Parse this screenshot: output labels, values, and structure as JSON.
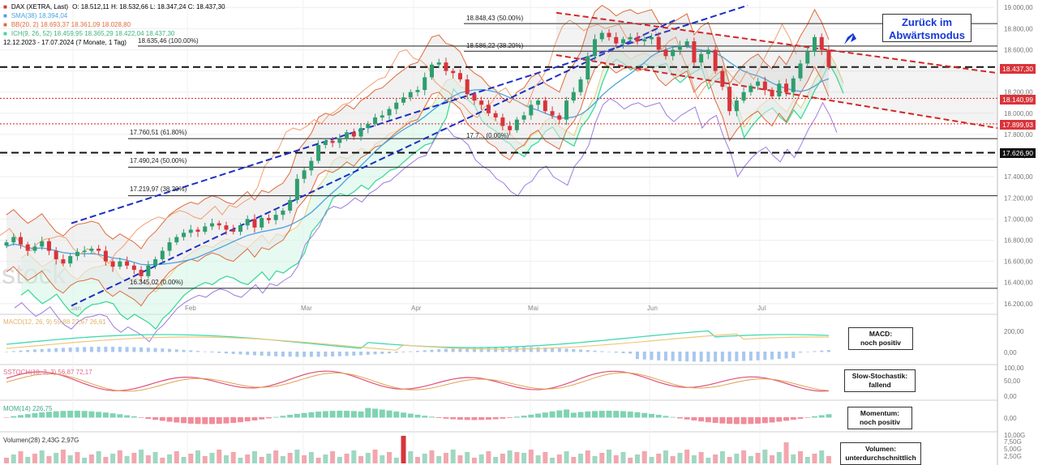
{
  "header": {
    "symbol": "DAX (XETRA, Last)",
    "ohlc": "O: 18.512,11  H: 18.532,66  L: 18.347,24  C: 18.437,30",
    "sma": "SMA(38)  18.394,04",
    "bb": "BB(20, 2)  18.693,37  18.361,09  18.028,80",
    "ichimoku": "ICH(9, 26, 52)  18.459,95  18.365,29  18.422,04  18.437,30",
    "range": "12.12.2023 - 17.07.2024  (7 Monate, 1 Tag)"
  },
  "callout": {
    "line1": "Zurück im",
    "line2": "Abwärtsmodus"
  },
  "levels": {
    "l1": "18.848,43 (50.00%)",
    "l2": "18.586,22 (38.20%)",
    "l3": "18.635,46 (100.00%)",
    "l4": "17.760,51 (61.80%)",
    "l5": "17.490,24 (50.00%)",
    "l6": "17.219,97 (38.20%)",
    "l7": "16.345,02 (0.00%)",
    "l8": "17.7... (0.00%)"
  },
  "price_labels": {
    "current": "18.437,30",
    "red1": "18.140,99",
    "red2": "17.899,93",
    "black": "17.626,90"
  },
  "indicators": {
    "macd_legend": "MACD(12, 26, 9)  59,88  22,67  26,61",
    "stoch_legend": "SSTOCH(10, 3, 3)  56,87  72,17",
    "mom_legend": "MOM(14)  226,75",
    "vol_legend": "Volumen(28)  2,43G  2,97G",
    "macd_note": [
      "MACD:",
      "noch positiv"
    ],
    "stoch_note": [
      "Slow-Stochastik:",
      "fallend"
    ],
    "mom_note": [
      "Momentum:",
      "noch positiv"
    ],
    "vol_note": [
      "Volumen:",
      "unterdurchschnittlich"
    ]
  },
  "watermark": "stock",
  "colors": {
    "up": "#2e9e6e",
    "down": "#d8343a",
    "sma": "#4aa3df",
    "bb": "#e06a3a",
    "channel": "#1b2fc4",
    "red_channel": "#d81e1e",
    "cloud_up": "#3fd99a",
    "cloud_down": "#9d7be0",
    "accent_blue": "#1638d8"
  },
  "chart_data": {
    "type": "candlestick",
    "title": "DAX (XETRA, Last)",
    "period": "12.12.2023 - 17.07.2024",
    "x_ticks": [
      "Jan",
      "Feb",
      "Mar",
      "Apr",
      "Mai",
      "Jun",
      "Jul"
    ],
    "y_ticks": [
      "19.000,00",
      "18.800,00",
      "18.600,00",
      "18.400,00",
      "18.200,00",
      "18.000,00",
      "17.800,00",
      "17.600,00",
      "17.400,00",
      "17.200,00",
      "17.000,00",
      "16.800,00",
      "16.600,00",
      "16.400,00",
      "16.200,00"
    ],
    "ylim": [
      16130,
      19040
    ],
    "closes": [
      16780,
      16830,
      16760,
      16700,
      16740,
      16790,
      16700,
      16620,
      16580,
      16650,
      16690,
      16700,
      16720,
      16700,
      16600,
      16550,
      16600,
      16560,
      16520,
      16460,
      16560,
      16620,
      16700,
      16780,
      16830,
      16870,
      16900,
      16880,
      16930,
      16960,
      16940,
      16900,
      16880,
      16940,
      17000,
      16920,
      17010,
      16990,
      17040,
      17080,
      17180,
      17380,
      17460,
      17550,
      17700,
      17740,
      17720,
      17760,
      17820,
      17780,
      17860,
      17900,
      17960,
      17980,
      18040,
      18100,
      18150,
      18200,
      18220,
      18340,
      18460,
      18480,
      18400,
      18380,
      18320,
      18180,
      18120,
      18080,
      18000,
      17960,
      17880,
      17840,
      17940,
      17980,
      18080,
      18120,
      18020,
      17980,
      17940,
      18120,
      18200,
      18320,
      18540,
      18700,
      18760,
      18720,
      18660,
      18700,
      18720,
      18680,
      18700,
      18720,
      18600,
      18540,
      18600,
      18640,
      18680,
      18480,
      18560,
      18600,
      18400,
      18250,
      18020,
      18120,
      18200,
      18260,
      18300,
      18220,
      18160,
      18280,
      18200,
      18330,
      18470,
      18580,
      18720,
      18600,
      18437
    ],
    "horizontal_levels": [
      {
        "label": "18.848,43 (50.00%)",
        "value": 18848
      },
      {
        "label": "18.586,22 (38.20%)",
        "value": 18586
      },
      {
        "label": "18.635,46 (100.00%)",
        "value": 18635
      },
      {
        "label": "17.760,51 (61.80%)",
        "value": 17760
      },
      {
        "label": "17.490,24 (50.00%)",
        "value": 17490
      },
      {
        "label": "17.219,97 (38.20%)",
        "value": 17220
      },
      {
        "label": "16.345,02 (0.00%)",
        "value": 16345
      }
    ],
    "marked_prices": {
      "current": 18437.3,
      "red1": 18140.99,
      "red2": 17899.93,
      "black": 17626.9
    },
    "subpanels": [
      "MACD",
      "Slow-Stochastik",
      "Momentum",
      "Volumen"
    ],
    "subpanel_ticks": {
      "macd": [
        "200,00",
        "0,00"
      ],
      "stoch": [
        "100,00",
        "50,00",
        "0,00"
      ],
      "mom": [
        "0,00"
      ],
      "vol": [
        "10,00G",
        "7,50G",
        "5,00G",
        "2,50G"
      ]
    }
  }
}
